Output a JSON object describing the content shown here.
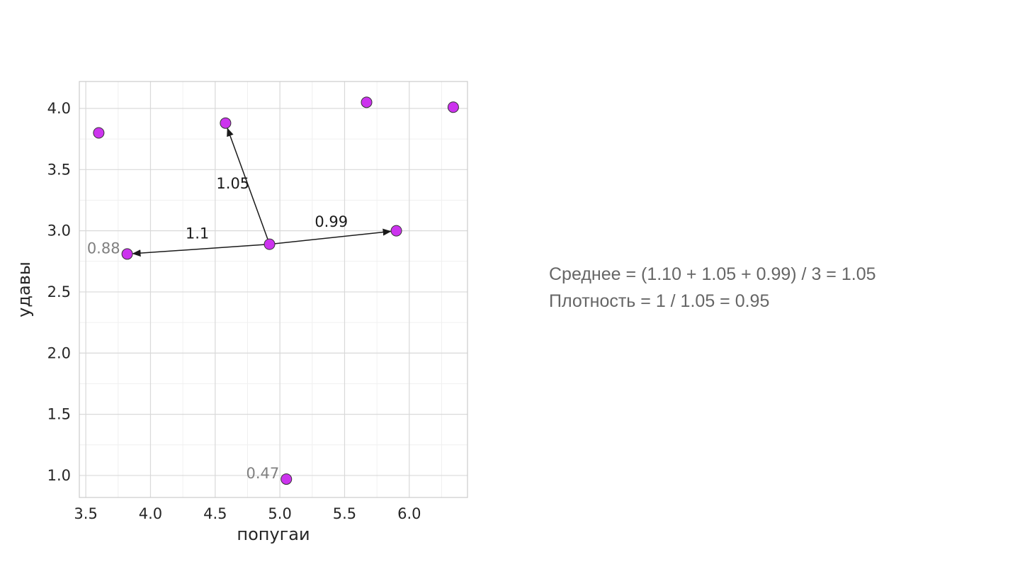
{
  "chart_data": {
    "type": "scatter",
    "xlabel": "попугаи",
    "ylabel": "удавы",
    "xlim": [
      3.45,
      6.45
    ],
    "ylim": [
      0.82,
      4.22
    ],
    "xticks": [
      "3.5",
      "4.0",
      "4.5",
      "5.0",
      "5.5",
      "6.0"
    ],
    "yticks": [
      "1.0",
      "1.5",
      "2.0",
      "2.5",
      "3.0",
      "3.5",
      "4.0"
    ],
    "grid": true,
    "point_color": "#cc33ee",
    "points": [
      {
        "x": 3.6,
        "y": 3.8
      },
      {
        "x": 4.58,
        "y": 3.88
      },
      {
        "x": 5.67,
        "y": 4.05
      },
      {
        "x": 6.34,
        "y": 4.01
      },
      {
        "x": 3.82,
        "y": 2.81,
        "label": "0.88"
      },
      {
        "x": 4.92,
        "y": 2.89
      },
      {
        "x": 5.9,
        "y": 3.0
      },
      {
        "x": 5.05,
        "y": 0.97,
        "label": "0.47"
      }
    ],
    "center": {
      "x": 4.92,
      "y": 2.89
    },
    "distances": [
      {
        "to": {
          "x": 3.82,
          "y": 2.81
        },
        "label": "1.1"
      },
      {
        "to": {
          "x": 4.58,
          "y": 3.88
        },
        "label": "1.05"
      },
      {
        "to": {
          "x": 5.9,
          "y": 3.0
        },
        "label": "0.99"
      }
    ]
  },
  "summary": {
    "line1": "Среднее = (1.10 + 1.05 + 0.99) / 3 = 1.05",
    "line2": "Плотность = 1 / 1.05 = 0.95"
  }
}
